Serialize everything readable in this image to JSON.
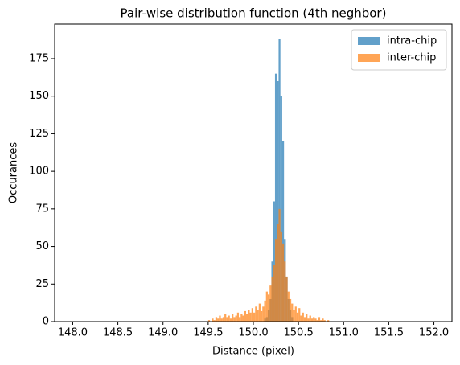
{
  "chart_data": {
    "type": "histogram",
    "title": "Pair-wise distribution function (4th neghbor)",
    "x_label": "Distance (pixel)",
    "y_label": "Occurances",
    "bins": [
      149.5,
      149.52,
      149.54,
      149.56,
      149.58,
      149.6,
      149.62,
      149.64,
      149.66,
      149.68,
      149.7,
      149.72,
      149.74,
      149.76,
      149.78,
      149.8,
      149.82,
      149.84,
      149.86,
      149.88,
      149.9,
      149.92,
      149.94,
      149.96,
      149.98,
      150.0,
      150.02,
      150.04,
      150.06,
      150.08,
      150.1,
      150.12,
      150.14,
      150.16,
      150.18,
      150.2,
      150.22,
      150.24,
      150.26,
      150.28,
      150.3,
      150.32,
      150.34,
      150.36,
      150.38,
      150.4,
      150.42,
      150.44,
      150.46,
      150.48,
      150.5,
      150.52,
      150.54,
      150.56,
      150.58,
      150.6,
      150.62,
      150.64,
      150.66,
      150.68,
      150.7,
      150.72,
      150.74,
      150.76,
      150.78,
      150.8,
      150.82,
      150.84,
      150.86,
      150.88,
      150.9
    ],
    "series": [
      {
        "name": "intra-chip",
        "color": "#1f77b4",
        "values": [
          0,
          0,
          0,
          0,
          0,
          0,
          0,
          0,
          0,
          0,
          0,
          0,
          0,
          0,
          0,
          0,
          0,
          0,
          0,
          0,
          0,
          0,
          0,
          0,
          0,
          0,
          0,
          0,
          0,
          0,
          0,
          2,
          3,
          8,
          15,
          40,
          80,
          165,
          160,
          188,
          150,
          120,
          55,
          30,
          15,
          8,
          3,
          0,
          0,
          0,
          0,
          0,
          0,
          0,
          0,
          0,
          0,
          0,
          0,
          0,
          0,
          0,
          0,
          0,
          0,
          0,
          0,
          0,
          0,
          0
        ]
      },
      {
        "name": "inter-chip",
        "color": "#ff7f0e",
        "values": [
          1,
          0,
          2,
          1,
          3,
          2,
          4,
          2,
          3,
          5,
          3,
          4,
          2,
          5,
          3,
          4,
          6,
          3,
          5,
          4,
          7,
          5,
          8,
          6,
          9,
          6,
          10,
          8,
          12,
          7,
          10,
          14,
          20,
          18,
          24,
          30,
          38,
          55,
          65,
          75,
          60,
          52,
          40,
          30,
          20,
          15,
          12,
          8,
          10,
          6,
          9,
          4,
          6,
          3,
          5,
          2,
          4,
          2,
          3,
          2,
          1,
          3,
          1,
          2,
          1,
          0,
          1,
          0,
          0,
          0
        ]
      }
    ],
    "alpha": 0.7,
    "xlim": [
      147.8,
      152.2
    ],
    "ylim": [
      0,
      198
    ],
    "xticks": [
      {
        "value": 148,
        "label": "148.0"
      },
      {
        "value": 148.5,
        "label": "148.5"
      },
      {
        "value": 149,
        "label": "149.0"
      },
      {
        "value": 149.5,
        "label": "149.5"
      },
      {
        "value": 150,
        "label": "150.0"
      },
      {
        "value": 150.5,
        "label": "150.5"
      },
      {
        "value": 151,
        "label": "151.0"
      },
      {
        "value": 151.5,
        "label": "151.5"
      },
      {
        "value": 152,
        "label": "152.0"
      }
    ],
    "yticks": [
      0,
      25,
      50,
      75,
      100,
      125,
      150,
      175
    ],
    "legend": "upper right"
  }
}
